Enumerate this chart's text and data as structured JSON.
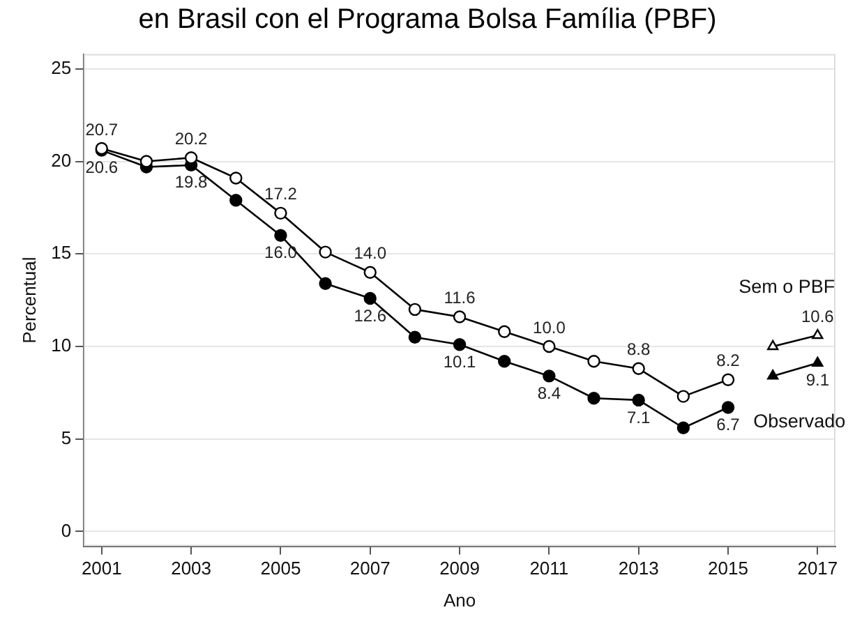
{
  "chart_data": {
    "type": "line",
    "title": "en Brasil con el Programa Bolsa Família (PBF)",
    "xlabel": "Ano",
    "ylabel": "Percentual",
    "xlim": [
      2000.6,
      2017.4
    ],
    "ylim": [
      -0.8,
      25.8
    ],
    "xticks": [
      2001,
      2003,
      2005,
      2007,
      2009,
      2011,
      2013,
      2015,
      2017
    ],
    "yticks": [
      0,
      5,
      10,
      15,
      20,
      25
    ],
    "grid": "y",
    "legend": false,
    "series": [
      {
        "color": "#ffffff",
        "marker": "circle",
        "x": [
          2001,
          2002,
          2003,
          2004,
          2005,
          2006,
          2007,
          2008,
          2009,
          2010,
          2011,
          2012,
          2013,
          2014,
          2015
        ],
        "values": [
          20.7,
          20.0,
          20.2,
          19.1,
          17.2,
          15.1,
          14.0,
          12.0,
          11.6,
          10.8,
          10.0,
          9.2,
          8.8,
          7.3,
          8.2
        ],
        "value_labels": [
          "20.7",
          null,
          "20.2",
          null,
          "17.2",
          null,
          "14.0",
          null,
          "11.6",
          null,
          "10.0",
          null,
          "8.8",
          null,
          "8.2"
        ]
      },
      {
        "color": "#000000",
        "marker": "circle",
        "x": [
          2001,
          2002,
          2003,
          2004,
          2005,
          2006,
          2007,
          2008,
          2009,
          2010,
          2011,
          2012,
          2013,
          2014,
          2015
        ],
        "values": [
          20.6,
          19.7,
          19.8,
          17.9,
          16.0,
          13.4,
          12.6,
          10.5,
          10.1,
          9.2,
          8.4,
          7.2,
          7.1,
          5.6,
          6.7
        ],
        "value_labels": [
          "20.6",
          null,
          "19.8",
          null,
          "16.0",
          null,
          "12.6",
          null,
          "10.1",
          null,
          "8.4",
          null,
          "7.1",
          null,
          "6.7"
        ]
      },
      {
        "name": "Sem o PBF",
        "color": "#ffffff",
        "marker": "triangle",
        "x": [
          2016,
          2017
        ],
        "values": [
          10.0,
          10.6
        ],
        "value_labels": [
          null,
          "10.6"
        ]
      },
      {
        "name": "Observado",
        "color": "#000000",
        "marker": "triangle",
        "x": [
          2016,
          2017
        ],
        "values": [
          8.4,
          9.1
        ],
        "value_labels": [
          null,
          "9.1"
        ]
      }
    ]
  }
}
